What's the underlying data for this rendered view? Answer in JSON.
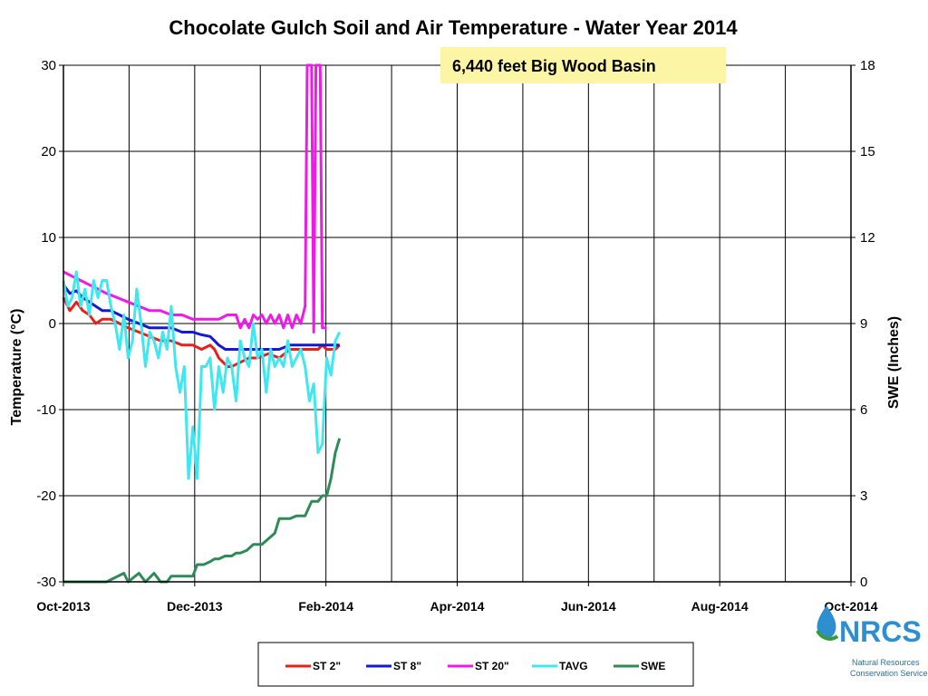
{
  "chart_data": {
    "type": "line",
    "title": "Chocolate Gulch Soil and Air Temperature - Water Year 2014",
    "annotation": "6,440 feet Big Wood Basin",
    "ylabel": "Temperature (°C)",
    "y2label": "SWE (Inches)",
    "ylim": [
      -30,
      30
    ],
    "y2lim": [
      0,
      18
    ],
    "yticks": [
      "30",
      "20",
      "10",
      "0",
      "-10",
      "-20",
      "-30"
    ],
    "y2ticks": [
      "18",
      "15",
      "12",
      "9",
      "6",
      "3",
      "0"
    ],
    "xticks": [
      "Oct-2013",
      "Dec-2013",
      "Feb-2014",
      "Apr-2014",
      "Jun-2014",
      "Aug-2014",
      "Oct-2014"
    ],
    "x_range_days": [
      0,
      365
    ],
    "grid": true,
    "legend_position": "bottom",
    "series": [
      {
        "name": "ST 2\"",
        "color": "#e8201c",
        "axis": "left",
        "x": [
          0,
          3,
          6,
          9,
          12,
          15,
          18,
          22,
          26,
          30,
          35,
          40,
          45,
          50,
          55,
          60,
          64,
          68,
          70,
          72,
          74,
          76,
          78,
          82,
          86,
          90,
          95,
          100,
          105,
          110,
          115,
          118,
          120,
          122,
          124,
          126,
          128
        ],
        "y": [
          3,
          1.5,
          2.5,
          1.5,
          1,
          0,
          0.5,
          0.5,
          0,
          -0.5,
          -1,
          -1.5,
          -2,
          -2,
          -2.5,
          -2.5,
          -3,
          -2.5,
          -3,
          -4,
          -4.5,
          -5,
          -5,
          -4.5,
          -4,
          -4,
          -3.5,
          -4,
          -3,
          -3,
          -3,
          -3,
          -2.5,
          -3,
          -3,
          -3,
          -2.5
        ]
      },
      {
        "name": "ST 8\"",
        "color": "#1518d6",
        "axis": "left",
        "x": [
          0,
          3,
          6,
          9,
          12,
          15,
          18,
          22,
          26,
          30,
          35,
          40,
          45,
          50,
          55,
          60,
          64,
          68,
          70,
          72,
          75,
          80,
          85,
          90,
          95,
          100,
          105,
          110,
          115,
          120,
          125,
          128
        ],
        "y": [
          4.5,
          3.5,
          3.8,
          3,
          2.5,
          2,
          1.5,
          1.5,
          1,
          0.5,
          0,
          -0.5,
          -0.5,
          -0.5,
          -1,
          -1,
          -1.3,
          -1.5,
          -2,
          -2.5,
          -3,
          -3,
          -3,
          -3,
          -3,
          -3,
          -2.5,
          -2.5,
          -2.5,
          -2.5,
          -2.5,
          -2.5
        ]
      },
      {
        "name": "ST 20\"",
        "color": "#ef1ae8",
        "axis": "left",
        "x": [
          0,
          4,
          8,
          12,
          16,
          20,
          25,
          30,
          35,
          40,
          45,
          50,
          55,
          60,
          64,
          68,
          72,
          76,
          80,
          82,
          84,
          86,
          88,
          90,
          92,
          94,
          96,
          98,
          100,
          102,
          104,
          106,
          108,
          110,
          112,
          113,
          114,
          115,
          116,
          117,
          118,
          119,
          120,
          121,
          122
        ],
        "y": [
          6,
          5.5,
          5,
          4.5,
          4,
          3.5,
          3,
          2.5,
          2,
          1.5,
          1.5,
          1,
          1,
          0.5,
          0.5,
          0.5,
          0.5,
          1,
          1,
          -0.5,
          0.5,
          -0.5,
          1,
          0.5,
          1,
          0,
          1,
          0,
          1,
          -0.5,
          1,
          -0.5,
          1,
          0,
          2,
          30,
          30,
          30,
          -1,
          30,
          30,
          30,
          -0.5,
          -0.5,
          -0.5
        ]
      },
      {
        "name": "TAVG",
        "color": "#3fe8f0",
        "axis": "left",
        "x": [
          0,
          2,
          4,
          6,
          8,
          10,
          12,
          14,
          16,
          18,
          20,
          22,
          24,
          26,
          28,
          30,
          32,
          34,
          36,
          38,
          40,
          42,
          44,
          46,
          48,
          50,
          52,
          54,
          56,
          58,
          60,
          62,
          64,
          66,
          68,
          70,
          72,
          74,
          76,
          78,
          80,
          82,
          84,
          86,
          88,
          90,
          92,
          94,
          96,
          98,
          100,
          102,
          104,
          106,
          108,
          110,
          112,
          114,
          116,
          118,
          120,
          122,
          124,
          126,
          128
        ],
        "y": [
          5,
          2,
          3,
          6,
          2,
          4,
          1,
          5,
          3,
          5,
          5,
          2,
          0,
          -3,
          1,
          -4,
          -2,
          4,
          0,
          -5,
          -1,
          -2,
          -4,
          -1,
          -3,
          2,
          -5,
          -8,
          -5,
          -18,
          -12,
          -18,
          -5,
          -5,
          -4,
          -10,
          -5,
          -8,
          -4,
          -5,
          -9,
          -2,
          -4,
          -5,
          0,
          -4,
          -3,
          -8,
          -3,
          -5,
          -4,
          -5,
          -2,
          -5,
          -4,
          -3,
          -5,
          -9,
          -7,
          -15,
          -14,
          -4,
          -6,
          -2,
          -1
        ]
      },
      {
        "name": "SWE",
        "color": "#2e8b57",
        "axis": "right",
        "x": [
          0,
          10,
          20,
          28,
          30,
          35,
          38,
          42,
          45,
          48,
          50,
          55,
          58,
          60,
          62,
          65,
          68,
          70,
          72,
          75,
          78,
          80,
          82,
          85,
          88,
          90,
          92,
          95,
          98,
          100,
          102,
          105,
          108,
          110,
          112,
          115,
          118,
          120,
          122,
          124,
          126,
          128
        ],
        "y": [
          0,
          0,
          0,
          0.3,
          0,
          0.3,
          0,
          0.3,
          0,
          0,
          0.2,
          0.2,
          0.2,
          0.2,
          0.6,
          0.6,
          0.7,
          0.8,
          0.8,
          0.9,
          0.9,
          1,
          1,
          1.1,
          1.3,
          1.3,
          1.3,
          1.5,
          1.7,
          2.2,
          2.2,
          2.2,
          2.3,
          2.3,
          2.3,
          2.8,
          2.8,
          3,
          3,
          3.6,
          4.5,
          5
        ]
      }
    ]
  },
  "logo": {
    "name": "NRCS",
    "line1": "Natural Resources",
    "line2": "Conservation Service"
  }
}
